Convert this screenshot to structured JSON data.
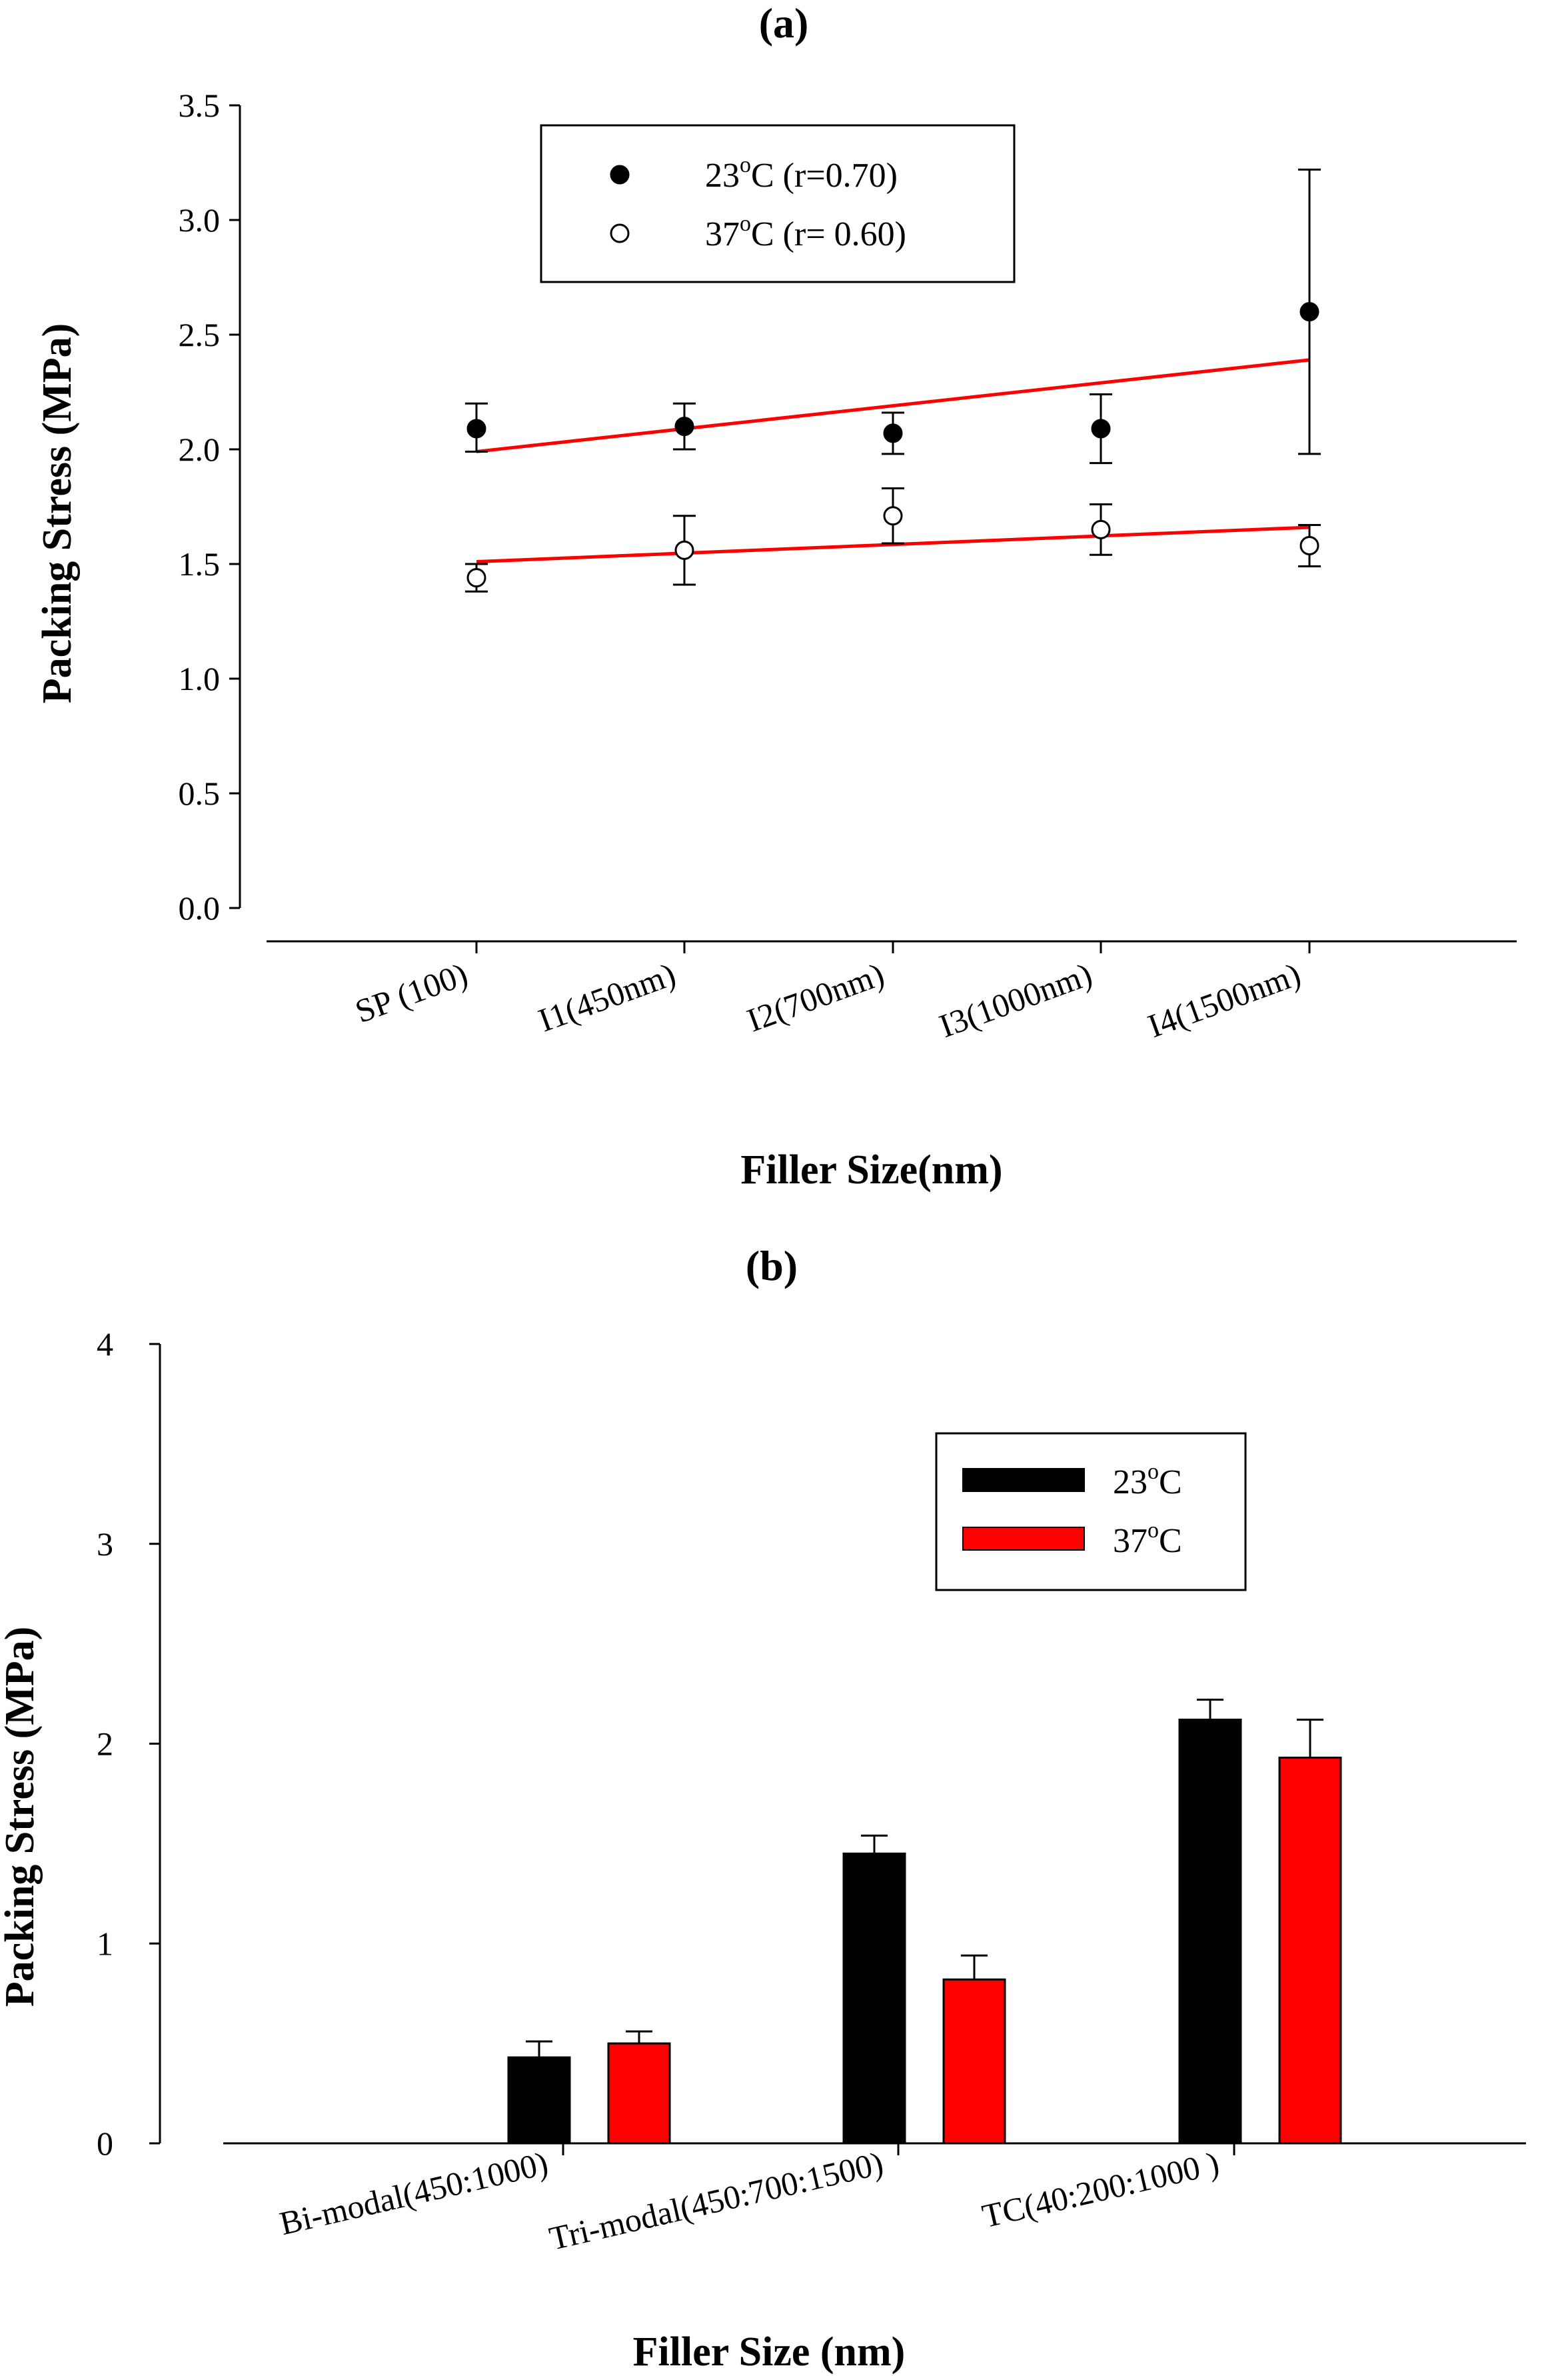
{
  "chart_data": [
    {
      "panel_label": "(a)",
      "type": "scatter",
      "xlabel": "Filler Size(nm)",
      "ylabel": "Packing Stress (MPa)",
      "ylim": [
        0,
        3.5
      ],
      "yticks": [
        "0.0",
        "0.5",
        "1.0",
        "1.5",
        "2.0",
        "2.5",
        "3.0",
        "3.5"
      ],
      "categories": [
        "SP (100)",
        "I1(450nm)",
        "I2(700nm)",
        "I3(1000nm)",
        "I4(1500nm)"
      ],
      "legend_position": "top-left",
      "grid": false,
      "series": [
        {
          "name_main": "23",
          "name_sup": "o",
          "name_rest": "C (r=0.70)",
          "marker": "filled-circle",
          "values": [
            2.09,
            2.1,
            2.07,
            2.09,
            2.6
          ],
          "error_upper": [
            2.2,
            2.2,
            2.16,
            2.24,
            3.22
          ],
          "error_lower": [
            1.99,
            2.0,
            1.98,
            1.94,
            1.98
          ],
          "fit": [
            1.99,
            2.39
          ]
        },
        {
          "name_main": "37",
          "name_sup": "o",
          "name_rest": "C (r= 0.60)",
          "marker": "open-circle",
          "values": [
            1.44,
            1.56,
            1.71,
            1.65,
            1.58
          ],
          "error_upper": [
            1.5,
            1.71,
            1.83,
            1.76,
            1.67
          ],
          "error_lower": [
            1.38,
            1.41,
            1.59,
            1.54,
            1.49
          ],
          "fit": [
            1.51,
            1.66
          ]
        }
      ],
      "fit_color": "#ff0000"
    },
    {
      "panel_label": "(b)",
      "type": "bar",
      "xlabel": "Filler Size (nm)",
      "ylabel": "Packing Stress (MPa)",
      "ylim": [
        0,
        4
      ],
      "yticks": [
        "0",
        "1",
        "2",
        "3",
        "4"
      ],
      "categories": [
        "Bi-modal(450:1000)",
        "Tri-modal(450:700:1500)",
        "TC(40:200:1000 )"
      ],
      "legend_position": "top-right",
      "grid": false,
      "series": [
        {
          "name_main": "23",
          "name_sup": "o",
          "name_rest": "C",
          "color": "#000000",
          "values": [
            0.43,
            1.45,
            2.12
          ],
          "error_upper": [
            0.51,
            1.54,
            2.22
          ]
        },
        {
          "name_main": "37",
          "name_sup": "o",
          "name_rest": "C",
          "color": "#ff0000",
          "values": [
            0.5,
            0.82,
            1.93
          ],
          "error_upper": [
            0.56,
            0.94,
            2.12
          ]
        }
      ]
    }
  ]
}
